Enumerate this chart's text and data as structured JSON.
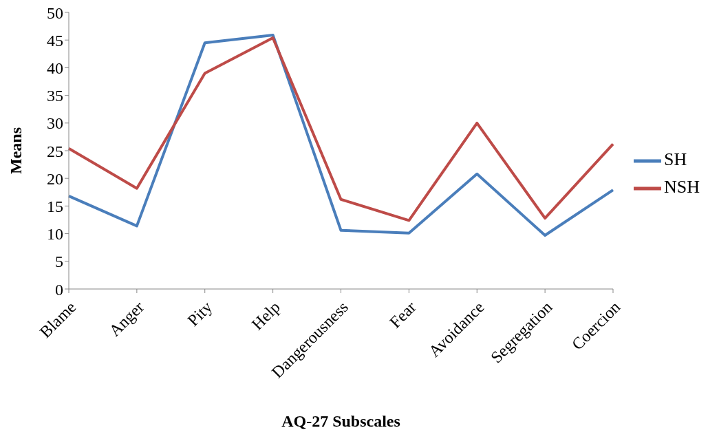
{
  "chart_data": {
    "type": "line",
    "xlabel": "AQ-27 Subscales",
    "ylabel": "Means",
    "categories": [
      "Blame",
      "Anger",
      "Pity",
      "Help",
      "Dangerousness",
      "Fear",
      "Avoidance",
      "Segregation",
      "Coercion"
    ],
    "series": [
      {
        "name": "SH",
        "color": "#4a7ebb",
        "values": [
          16.8,
          11.4,
          44.5,
          45.9,
          10.6,
          10.1,
          20.8,
          9.7,
          17.9
        ]
      },
      {
        "name": "NSH",
        "color": "#be4b48",
        "values": [
          25.4,
          18.2,
          39.0,
          45.4,
          16.2,
          12.4,
          30.0,
          12.8,
          26.2
        ]
      }
    ],
    "ylim": [
      0,
      50
    ],
    "yticks": [
      0,
      5,
      10,
      15,
      20,
      25,
      30,
      35,
      40,
      45,
      50
    ],
    "grid": false,
    "legend": "right",
    "marker": "none",
    "line_style": "solid"
  }
}
